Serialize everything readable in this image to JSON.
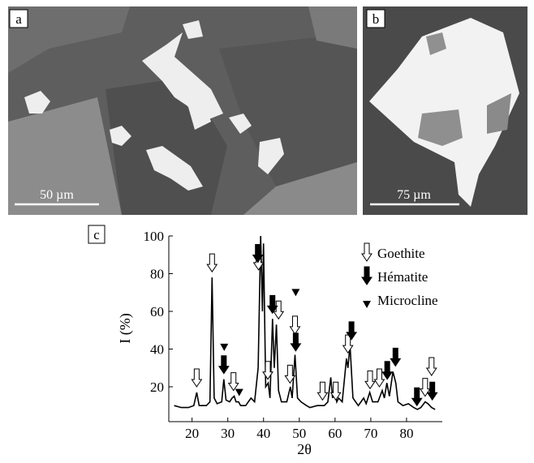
{
  "panels": {
    "a": {
      "label": "a",
      "scale": "50 µm"
    },
    "b": {
      "label": "b",
      "scale": "75 µm"
    }
  },
  "chart_data": {
    "type": "line",
    "label": "c",
    "x_label": "2θ",
    "y_label": "I (%)",
    "xlim": [
      13.5,
      90
    ],
    "ylim": [
      1.5,
      100
    ],
    "xticks": [
      20,
      30,
      40,
      50,
      60,
      70,
      80
    ],
    "yticks": [
      20,
      40,
      60,
      80,
      100
    ],
    "color": "#000000",
    "x": [
      15,
      17,
      19,
      20.5,
      21.3,
      22,
      24,
      25,
      25.6,
      26.2,
      27,
      28.3,
      28.9,
      29.5,
      30.5,
      31.2,
      31.8,
      32.3,
      33,
      33.6,
      35,
      36.5,
      37.5,
      38.5,
      39.2,
      39.7,
      40,
      40.6,
      41.3,
      41.8,
      42.5,
      43,
      43.6,
      44.2,
      45,
      46.5,
      47.5,
      48,
      48.8,
      49.5,
      50.5,
      52,
      53,
      55,
      57,
      58,
      58.8,
      59.3,
      59.8,
      60.5,
      61,
      62,
      63.2,
      63.6,
      64.2,
      65,
      66.5,
      68,
      68.7,
      69.7,
      70.5,
      72,
      73.2,
      73.8,
      74.5,
      75.2,
      76.2,
      77,
      77.6,
      79,
      80.5,
      82,
      83,
      84,
      85.2,
      86,
      87,
      88
    ],
    "values": [
      10,
      9,
      9,
      10,
      17,
      10,
      10,
      12,
      78,
      14,
      11,
      12,
      24,
      13,
      12,
      14,
      15,
      12,
      12,
      10,
      10,
      14,
      12,
      30,
      100,
      60,
      96,
      20,
      22,
      14,
      56,
      30,
      53,
      18,
      12,
      12,
      20,
      14,
      37,
      14,
      12,
      10,
      9,
      10,
      10,
      12,
      25,
      14,
      20,
      12,
      14,
      12,
      35,
      30,
      42,
      14,
      10,
      14,
      11,
      17,
      12,
      12,
      18,
      14,
      22,
      15,
      28,
      22,
      12,
      10,
      11,
      9,
      8,
      9,
      12,
      11,
      9,
      8
    ],
    "markers": [
      {
        "name": "Goethite",
        "symbol": "open-arrow",
        "x": [
          21.3,
          25.6,
          31.6,
          38.6,
          41.2,
          44.2,
          47.4,
          48.8,
          56.5,
          60.2,
          63.6,
          69.8,
          72.4,
          85.2,
          87.0
        ],
        "y": [
          20,
          81,
          18,
          82,
          24,
          56,
          22,
          48,
          13,
          13,
          38,
          19,
          20,
          15,
          26
        ]
      },
      {
        "name": "Hématite",
        "symbol": "filled-arrow",
        "x": [
          28.9,
          38.4,
          42.5,
          49.0,
          64.6,
          74.6,
          76.9,
          82.9,
          87.2
        ],
        "y": [
          27,
          86,
          59,
          39,
          45,
          24,
          31,
          10,
          13
        ]
      },
      {
        "name": "Microcline",
        "symbol": "triangle",
        "x": [
          29.0,
          33.2,
          49.0
        ],
        "y": [
          39,
          15,
          68
        ]
      }
    ]
  }
}
